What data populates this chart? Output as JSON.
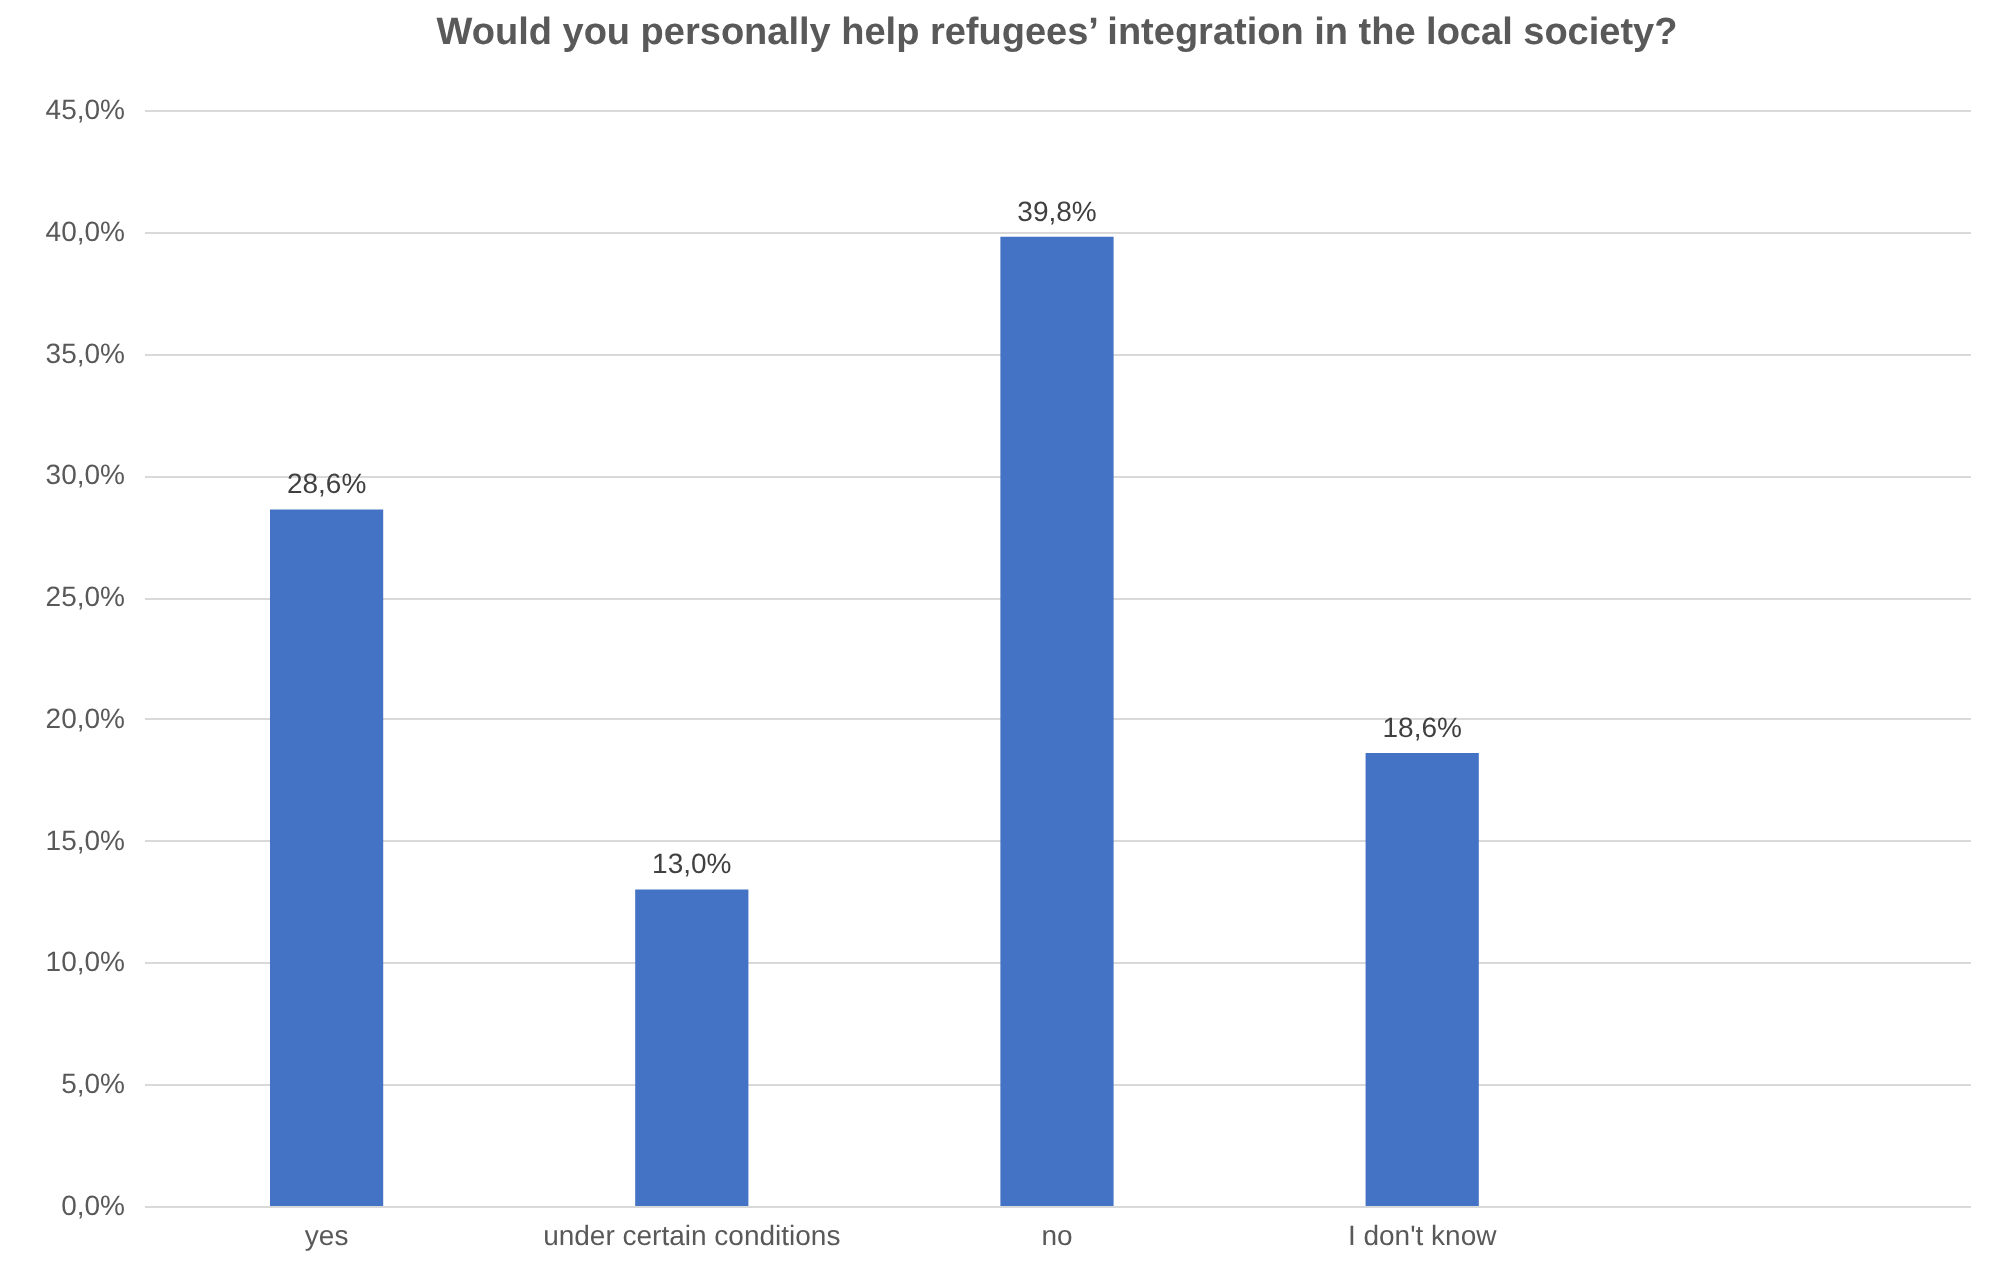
{
  "chart_data": {
    "type": "bar",
    "title": "Would you personally help refugees’ integration in the local society?",
    "categories": [
      "yes",
      "under certain conditions",
      "no",
      "I don't know",
      null
    ],
    "values": [
      28.6,
      13.0,
      39.8,
      18.6,
      null
    ],
    "value_labels": [
      "28,6%",
      "13,0%",
      "39,8%",
      "18,6%",
      null
    ],
    "color": "#4472c4",
    "ylim": [
      0,
      45
    ],
    "yticks": [
      {
        "value": 0,
        "label": "0,0%"
      },
      {
        "value": 5,
        "label": "5,0%"
      },
      {
        "value": 10,
        "label": "10,0%"
      },
      {
        "value": 15,
        "label": "15,0%"
      },
      {
        "value": 20,
        "label": "20,0%"
      },
      {
        "value": 25,
        "label": "25,0%"
      },
      {
        "value": 30,
        "label": "30,0%"
      },
      {
        "value": 35,
        "label": "35,0%"
      },
      {
        "value": 40,
        "label": "40,0%"
      },
      {
        "value": 45,
        "label": "45,0%"
      }
    ],
    "grid": "y"
  }
}
